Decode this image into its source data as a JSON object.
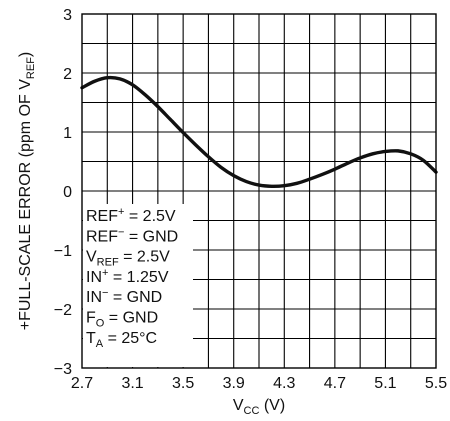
{
  "chart_data": {
    "type": "line",
    "title": "",
    "xlabel": {
      "main": "V",
      "sub": "CC",
      "suffix": " (V)"
    },
    "ylabel": {
      "main": "+FULL-SCALE ERROR (ppm OF V",
      "sub": "REF",
      "suffix": ")"
    },
    "xlim": [
      2.7,
      5.5
    ],
    "ylim": [
      -3,
      3
    ],
    "x_ticks": [
      "2.7",
      "3.1",
      "3.5",
      "3.9",
      "4.3",
      "4.7",
      "5.1",
      "5.5"
    ],
    "y_ticks": [
      "3",
      "2",
      "1",
      "0",
      "−1",
      "−2",
      "−3"
    ],
    "x_grid_step": 0.2,
    "y_grid_step": 0.5,
    "grid": true,
    "series": [
      {
        "x": [
          2.7,
          2.8,
          2.9,
          3.0,
          3.1,
          3.2,
          3.3,
          3.4,
          3.5,
          3.6,
          3.7,
          3.8,
          3.9,
          4.0,
          4.1,
          4.2,
          4.3,
          4.4,
          4.5,
          4.6,
          4.7,
          4.8,
          4.9,
          5.0,
          5.1,
          5.2,
          5.3,
          5.4,
          5.5
        ],
        "y": [
          1.75,
          1.86,
          1.92,
          1.9,
          1.8,
          1.63,
          1.43,
          1.21,
          0.99,
          0.78,
          0.58,
          0.4,
          0.26,
          0.16,
          0.1,
          0.08,
          0.09,
          0.13,
          0.2,
          0.28,
          0.37,
          0.47,
          0.56,
          0.63,
          0.67,
          0.68,
          0.63,
          0.52,
          0.32
        ]
      }
    ],
    "annotations": [
      {
        "base": "REF",
        "sup": "+",
        "sub": "",
        "rest": " = 2.5V"
      },
      {
        "base": "REF",
        "sup": "−",
        "sub": "",
        "rest": " = GND"
      },
      {
        "base": "V",
        "sup": "",
        "sub": "REF",
        "rest": " = 2.5V"
      },
      {
        "base": "IN",
        "sup": "+",
        "sub": "",
        "rest": " = 1.25V"
      },
      {
        "base": "IN",
        "sup": "−",
        "sub": "",
        "rest": " = GND"
      },
      {
        "base": "F",
        "sup": "",
        "sub": "O",
        "rest": " = GND"
      },
      {
        "base": "T",
        "sup": "",
        "sub": "A",
        "rest": " = 25°C"
      }
    ]
  }
}
